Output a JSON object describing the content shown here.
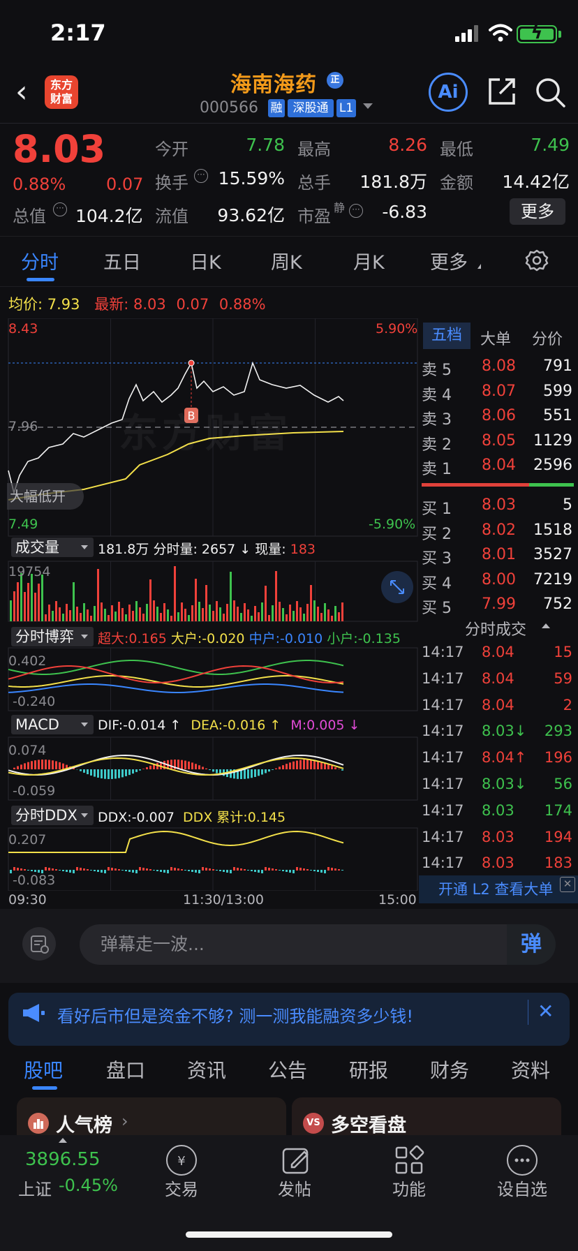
{
  "status_bar": {
    "time": "2:17"
  },
  "header": {
    "back_icon": "chevron-left-icon",
    "brand_logo_text": "东方\n财富",
    "stock_name": "海南海药",
    "zheng_badge": "正",
    "stock_code": "000566",
    "tags": [
      "融",
      "深股通",
      "L1"
    ],
    "ai_label": "Ai"
  },
  "quote": {
    "price": "8.03",
    "change_pct": "0.88%",
    "change_amt": "0.07",
    "total_mv_label": "总值",
    "total_mv": "104.2亿",
    "open_label": "今开",
    "open": "7.78",
    "high_label": "最高",
    "high": "8.26",
    "low_label": "最低",
    "low": "7.49",
    "turnover_label": "换手",
    "turnover": "15.59%",
    "volume_label": "总手",
    "volume": "181.8万",
    "amount_label": "金额",
    "amount": "14.42亿",
    "float_mv_label": "流值",
    "float_mv": "93.62亿",
    "pe_label": "市盈",
    "pe_sup": "静",
    "pe": "-6.83",
    "more_label": "更多"
  },
  "period_tabs": [
    "分时",
    "五日",
    "日K",
    "周K",
    "月K",
    "更多"
  ],
  "avg_row": {
    "avg_label": "均价:",
    "avg": "7.93",
    "latest_label": "最新:",
    "latest": "8.03",
    "latest_chg": "0.07",
    "latest_pct": "0.88%"
  },
  "chart_data": {
    "type": "line",
    "price_axis": {
      "top": "8.43",
      "mid": "7.96",
      "bottom": "7.49",
      "top_pct": "5.90%",
      "bottom_pct": "-5.90%"
    },
    "x_labels": [
      "09:30",
      "11:30/13:00",
      "15:00"
    ],
    "annotation_buy": "B",
    "watermark": "东方财富",
    "open_tag": "大幅低开",
    "volume_panel": {
      "title": "成交量",
      "total": "181.8万",
      "minute_label": "分时量:",
      "minute_val": "2657",
      "now_label": "现量:",
      "now_val": "183",
      "axis_max": "19754"
    },
    "fund_panel": {
      "title": "分时博弈",
      "super_label": "超大:",
      "super": "0.165",
      "big_label": "大户:",
      "big": "-0.020",
      "mid_label": "中户:",
      "mid": "-0.010",
      "small_label": "小户:",
      "small": "-0.135",
      "axis_max": "0.402",
      "axis_min": "-0.240"
    },
    "macd_panel": {
      "title": "MACD",
      "dif_label": "DIF:",
      "dif": "-0.014",
      "dea_label": "DEA:",
      "dea": "-0.016",
      "m_label": "M:",
      "m": "0.005",
      "axis_max": "0.074",
      "axis_min": "-0.059"
    },
    "ddx_panel": {
      "title": "分时DDX",
      "ddx_label": "DDX:",
      "ddx": "-0.007",
      "cum_label": "DDX 累计:",
      "cum": "0.145",
      "axis_max": "0.207",
      "axis_min": "-0.083"
    }
  },
  "order_book": {
    "tabs": [
      "五档",
      "大单",
      "分价"
    ],
    "asks": [
      {
        "label": "卖 5",
        "price": "8.08",
        "vol": "791"
      },
      {
        "label": "卖 4",
        "price": "8.07",
        "vol": "599"
      },
      {
        "label": "卖 3",
        "price": "8.06",
        "vol": "551"
      },
      {
        "label": "卖 2",
        "price": "8.05",
        "vol": "1129"
      },
      {
        "label": "卖 1",
        "price": "8.04",
        "vol": "2596"
      }
    ],
    "bids": [
      {
        "label": "买 1",
        "price": "8.03",
        "vol": "5"
      },
      {
        "label": "买 2",
        "price": "8.02",
        "vol": "1518"
      },
      {
        "label": "买 3",
        "price": "8.01",
        "vol": "3527"
      },
      {
        "label": "买 4",
        "price": "8.00",
        "vol": "7219"
      },
      {
        "label": "买 5",
        "price": "7.99",
        "vol": "752"
      }
    ]
  },
  "trades": {
    "header": "分时成交",
    "rows": [
      {
        "time": "14:17",
        "price": "8.04",
        "vol": "15",
        "color": "#f0413a"
      },
      {
        "time": "14:17",
        "price": "8.04",
        "vol": "59",
        "color": "#f0413a"
      },
      {
        "time": "14:17",
        "price": "8.04",
        "vol": "2",
        "color": "#f0413a"
      },
      {
        "time": "14:17",
        "price": "8.03↓",
        "vol": "293",
        "color": "#3ec24e"
      },
      {
        "time": "14:17",
        "price": "8.04↑",
        "vol": "196",
        "color": "#f0413a"
      },
      {
        "time": "14:17",
        "price": "8.03↓",
        "vol": "56",
        "color": "#3ec24e"
      },
      {
        "time": "14:17",
        "price": "8.03",
        "vol": "174",
        "color": "#3ec24e"
      },
      {
        "time": "14:17",
        "price": "8.03",
        "vol": "194",
        "color": "#f0413a"
      },
      {
        "time": "14:17",
        "price": "8.03",
        "vol": "183",
        "color": "#f0413a"
      }
    ],
    "l2_banner": "开通 L2 查看大单"
  },
  "danmu": {
    "placeholder": "弹幕走一波...",
    "send_label": "弹"
  },
  "promo": {
    "text": "看好后市但是资金不够? 测一测我能融资多少钱!"
  },
  "bottom_tabs": [
    "股吧",
    "盘口",
    "资讯",
    "公告",
    "研报",
    "财务",
    "资料"
  ],
  "cards": {
    "card1_title": "人气榜",
    "card2_title": "多空看盘",
    "card2_icon_text": "VS"
  },
  "bottom_nav": {
    "index_value": "3896.55",
    "index_name": "上证",
    "index_change": "-0.45%",
    "items": [
      {
        "label": "交易",
        "icon": "yuan-exchange-icon"
      },
      {
        "label": "发帖",
        "icon": "edit-icon"
      },
      {
        "label": "功能",
        "icon": "grid-icon"
      },
      {
        "label": "设自选",
        "icon": "more-dots-icon"
      }
    ]
  },
  "colors": {
    "up": "#f0413a",
    "down": "#3ec24e",
    "accent": "#3a86ff",
    "avg_line": "#f3e04a"
  }
}
